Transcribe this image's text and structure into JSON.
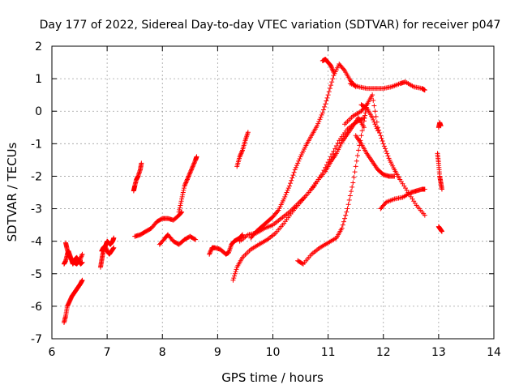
{
  "chart_data": {
    "type": "scatter",
    "title": "Day 177 of 2022, Sidereal Day-to-day VTEC variation (SDTVAR) for receiver p047",
    "xlabel": "GPS time / hours",
    "ylabel": "SDTVAR / TECUs",
    "xlim": [
      6,
      14
    ],
    "ylim": [
      -7,
      2
    ],
    "xticks": [
      "6",
      "7",
      "8",
      "9",
      "10",
      "11",
      "12",
      "13",
      "14"
    ],
    "yticks": [
      "-7",
      "-6",
      "-5",
      "-4",
      "-3",
      "-2",
      "-1",
      "0",
      "1",
      "2"
    ],
    "grid": true,
    "marker": "+",
    "color": "#ff0000",
    "series": [
      {
        "name": "s1",
        "x": [
          6.22,
          6.25,
          6.28,
          6.32,
          6.36,
          6.4,
          6.44,
          6.48,
          6.52,
          6.55
        ],
        "y": [
          -6.5,
          -6.3,
          -6.0,
          -5.85,
          -5.7,
          -5.6,
          -5.5,
          -5.4,
          -5.3,
          -5.2
        ]
      },
      {
        "name": "s2",
        "x": [
          6.22,
          6.25,
          6.28,
          6.3,
          6.33,
          6.36,
          6.38,
          6.42,
          6.45,
          6.48,
          6.52,
          6.55
        ],
        "y": [
          -4.7,
          -4.6,
          -4.4,
          -4.3,
          -4.45,
          -4.6,
          -4.7,
          -4.55,
          -4.5,
          -4.6,
          -4.7,
          -4.65
        ]
      },
      {
        "name": "s3",
        "x": [
          6.25,
          6.27,
          6.3,
          6.35,
          6.4,
          6.45,
          6.5,
          6.55
        ],
        "y": [
          -4.05,
          -4.2,
          -4.4,
          -4.55,
          -4.65,
          -4.7,
          -4.6,
          -4.4
        ]
      },
      {
        "name": "s4",
        "x": [
          6.88,
          6.9,
          6.92,
          6.95,
          6.98,
          7.0,
          7.03,
          7.06,
          7.1,
          7.12
        ],
        "y": [
          -4.8,
          -4.6,
          -4.4,
          -4.2,
          -4.1,
          -4.0,
          -4.05,
          -4.1,
          -4.0,
          -3.9
        ]
      },
      {
        "name": "s5",
        "x": [
          6.9,
          6.93,
          6.96,
          7.0,
          7.04,
          7.08,
          7.12
        ],
        "y": [
          -4.3,
          -4.2,
          -4.15,
          -4.3,
          -4.4,
          -4.3,
          -4.2
        ]
      },
      {
        "name": "s6",
        "x": [
          7.48,
          7.5,
          7.53,
          7.56,
          7.6,
          7.62
        ],
        "y": [
          -2.45,
          -2.3,
          -2.1,
          -2.0,
          -1.8,
          -1.6
        ]
      },
      {
        "name": "s7",
        "x": [
          7.5,
          7.6,
          7.7,
          7.8,
          7.9,
          8.0,
          8.1,
          8.2,
          8.3,
          8.35
        ],
        "y": [
          -3.85,
          -3.8,
          -3.7,
          -3.6,
          -3.4,
          -3.3,
          -3.3,
          -3.35,
          -3.2,
          -3.1
        ]
      },
      {
        "name": "s8",
        "x": [
          8.3,
          8.35,
          8.4,
          8.45,
          8.5,
          8.55,
          8.6,
          8.62
        ],
        "y": [
          -3.1,
          -2.7,
          -2.3,
          -2.1,
          -1.9,
          -1.7,
          -1.5,
          -1.4
        ]
      },
      {
        "name": "s9",
        "x": [
          7.95,
          8.05,
          8.1,
          8.2,
          8.3,
          8.4,
          8.5,
          8.6
        ],
        "y": [
          -4.1,
          -3.9,
          -3.8,
          -4.0,
          -4.1,
          -3.95,
          -3.85,
          -3.95
        ]
      },
      {
        "name": "s10",
        "x": [
          8.85,
          8.9,
          8.95,
          9.05,
          9.15,
          9.2,
          9.25,
          9.3,
          9.35,
          9.4,
          9.45
        ],
        "y": [
          -4.4,
          -4.2,
          -4.2,
          -4.25,
          -4.4,
          -4.35,
          -4.1,
          -4.0,
          -3.95,
          -3.9,
          -3.8
        ]
      },
      {
        "name": "s11",
        "x": [
          9.35,
          9.4,
          9.45,
          9.5,
          9.55
        ],
        "y": [
          -1.7,
          -1.4,
          -1.2,
          -0.9,
          -0.65
        ]
      },
      {
        "name": "s12",
        "x": [
          9.28,
          9.35,
          9.45,
          9.6,
          9.75,
          9.9,
          10.05,
          10.2,
          10.35,
          10.5,
          10.65,
          10.8,
          10.95,
          11.05,
          11.15,
          11.25,
          11.35,
          11.45,
          11.55,
          11.65
        ],
        "y": [
          -5.2,
          -4.8,
          -4.5,
          -4.25,
          -4.1,
          -3.95,
          -3.75,
          -3.45,
          -3.1,
          -2.8,
          -2.5,
          -2.15,
          -1.85,
          -1.55,
          -1.3,
          -0.95,
          -0.7,
          -0.45,
          -0.2,
          -0.5
        ]
      },
      {
        "name": "s13",
        "x": [
          9.6,
          9.7,
          9.8,
          9.9,
          10.0,
          10.1,
          10.2,
          10.3,
          10.4,
          10.5,
          10.6,
          10.7,
          10.8,
          10.9,
          11.0,
          11.1,
          11.2,
          11.3,
          11.4,
          11.5
        ],
        "y": [
          -3.9,
          -3.7,
          -3.55,
          -3.4,
          -3.25,
          -3.05,
          -2.7,
          -2.3,
          -1.8,
          -1.4,
          -1.05,
          -0.75,
          -0.45,
          -0.05,
          0.5,
          1.1,
          1.45,
          1.25,
          0.95,
          0.75
        ]
      },
      {
        "name": "s14",
        "x": [
          9.4,
          9.55,
          9.7,
          9.85,
          10.0,
          10.15,
          10.3,
          10.45,
          10.6,
          10.75,
          10.9,
          11.05,
          11.2,
          11.35,
          11.5,
          11.65
        ],
        "y": [
          -4.0,
          -3.8,
          -3.75,
          -3.6,
          -3.5,
          -3.3,
          -3.1,
          -2.85,
          -2.6,
          -2.3,
          -1.9,
          -1.4,
          -0.9,
          -0.55,
          -0.35,
          -0.2
        ]
      },
      {
        "name": "s15",
        "x": [
          10.9,
          10.95,
          11.0,
          11.05,
          11.1
        ],
        "y": [
          1.55,
          1.6,
          1.5,
          1.4,
          1.2
        ]
      },
      {
        "name": "s16",
        "x": [
          11.4,
          11.55,
          11.7,
          11.85,
          12.0,
          12.15,
          12.3,
          12.4,
          12.55,
          12.7,
          12.75
        ],
        "y": [
          0.85,
          0.75,
          0.7,
          0.7,
          0.7,
          0.75,
          0.85,
          0.9,
          0.75,
          0.7,
          0.65
        ]
      },
      {
        "name": "s17",
        "x": [
          10.45,
          10.55,
          10.7,
          10.85,
          11.0,
          11.15,
          11.25,
          11.35,
          11.45,
          11.55,
          11.65,
          11.7
        ],
        "y": [
          -4.6,
          -4.7,
          -4.4,
          -4.2,
          -4.05,
          -3.9,
          -3.6,
          -3.0,
          -2.2,
          -1.2,
          -0.3,
          0.2
        ]
      },
      {
        "name": "s18",
        "x": [
          11.3,
          11.45,
          11.6,
          11.7,
          11.8,
          11.9,
          12.0,
          12.1,
          12.2,
          12.3,
          12.45,
          12.6,
          12.75
        ],
        "y": [
          -0.4,
          -0.15,
          0.0,
          0.2,
          0.5,
          -0.5,
          -1.0,
          -1.45,
          -1.8,
          -2.1,
          -2.5,
          -2.9,
          -3.2
        ]
      },
      {
        "name": "s19",
        "x": [
          11.5,
          11.6,
          11.7,
          11.8,
          11.9,
          12.0,
          12.1,
          12.2
        ],
        "y": [
          -0.75,
          -1.0,
          -1.3,
          -1.55,
          -1.8,
          -1.95,
          -2.0,
          -2.0
        ]
      },
      {
        "name": "s20",
        "x": [
          11.6,
          11.7,
          11.8,
          11.9
        ],
        "y": [
          0.2,
          0.1,
          -0.2,
          -0.6
        ]
      },
      {
        "name": "s21",
        "x": [
          11.95,
          12.05,
          12.2,
          12.35,
          12.5,
          12.6,
          12.7,
          12.75
        ],
        "y": [
          -3.0,
          -2.8,
          -2.7,
          -2.65,
          -2.5,
          -2.45,
          -2.4,
          -2.4
        ]
      },
      {
        "name": "s22",
        "x": [
          13.0,
          13.02,
          13.04
        ],
        "y": [
          -0.5,
          -0.35,
          -0.45
        ]
      },
      {
        "name": "s23",
        "x": [
          12.98,
          13.0,
          13.02,
          13.04,
          13.06
        ],
        "y": [
          -1.3,
          -1.6,
          -2.0,
          -2.2,
          -2.4
        ]
      },
      {
        "name": "s24",
        "x": [
          13.0,
          13.02,
          13.04,
          13.06
        ],
        "y": [
          -3.55,
          -3.6,
          -3.65,
          -3.7
        ]
      }
    ]
  }
}
